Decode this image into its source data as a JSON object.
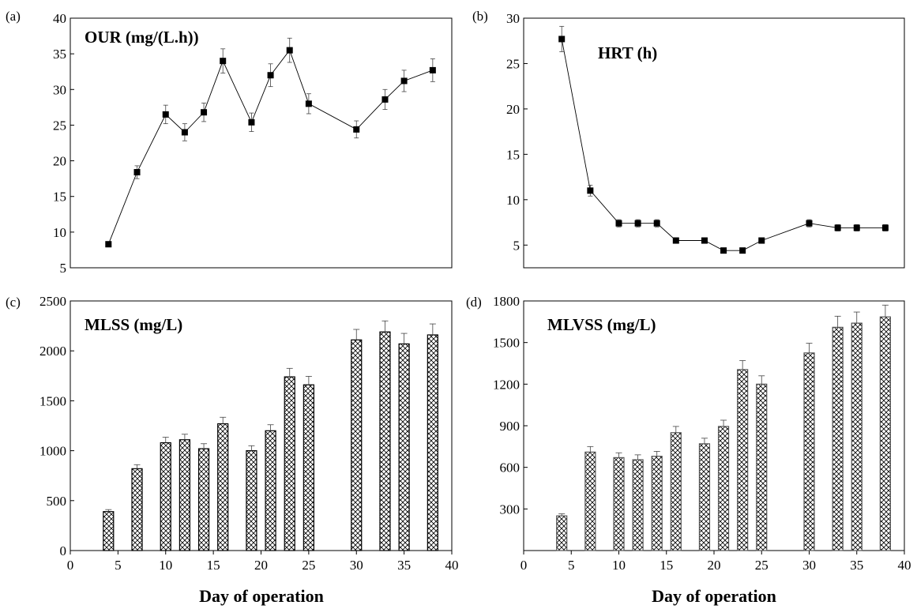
{
  "figure": {
    "xlabel_left": "Day of operation",
    "xlabel_right": "Day of operation"
  },
  "chart_data": [
    {
      "panel": "(a)",
      "type": "line",
      "title": "OUR (mg/(L.h))",
      "xlabel": "",
      "ylabel": "",
      "xlim": [
        0,
        40
      ],
      "ylim": [
        5,
        40
      ],
      "yticks": [
        5,
        10,
        15,
        20,
        25,
        30,
        35,
        40
      ],
      "xticks": [],
      "x": [
        4,
        7,
        10,
        12,
        14,
        16,
        19,
        21,
        23,
        25,
        30,
        33,
        35,
        38
      ],
      "values": [
        8.3,
        18.4,
        26.5,
        24.0,
        26.8,
        34.0,
        25.4,
        32.0,
        35.5,
        28.0,
        24.4,
        28.6,
        31.2,
        32.7
      ],
      "errors": [
        0.2,
        0.9,
        1.3,
        1.2,
        1.3,
        1.7,
        1.3,
        1.6,
        1.7,
        1.4,
        1.2,
        1.4,
        1.5,
        1.6
      ],
      "marker": "square"
    },
    {
      "panel": "(b)",
      "type": "line",
      "title": "HRT (h)",
      "xlabel": "",
      "ylabel": "",
      "xlim": [
        0,
        40
      ],
      "ylim": [
        2.5,
        30
      ],
      "yticks": [
        5,
        10,
        15,
        20,
        25,
        30
      ],
      "xticks": [],
      "x": [
        4,
        7,
        10,
        12,
        14,
        16,
        19,
        21,
        23,
        25,
        30,
        33,
        35,
        38
      ],
      "values": [
        27.7,
        11.0,
        7.4,
        7.4,
        7.4,
        5.5,
        5.5,
        4.4,
        4.4,
        5.5,
        7.4,
        6.9,
        6.9,
        6.9
      ],
      "errors": [
        1.4,
        0.6,
        0.4,
        0.4,
        0.4,
        0.3,
        0.3,
        0.2,
        0.2,
        0.3,
        0.4,
        0.35,
        0.35,
        0.35
      ],
      "marker": "square"
    },
    {
      "panel": "(c)",
      "type": "bar",
      "title": "MLSS (mg/L)",
      "xlabel": "Day of operation",
      "ylabel": "",
      "xlim": [
        0,
        40
      ],
      "ylim": [
        0,
        2500
      ],
      "yticks": [
        0,
        500,
        1000,
        1500,
        2000,
        2500
      ],
      "xticks": [
        0,
        5,
        10,
        15,
        20,
        25,
        30,
        35,
        40
      ],
      "x": [
        4,
        7,
        10,
        12,
        14,
        16,
        19,
        21,
        23,
        25,
        30,
        33,
        35,
        38
      ],
      "values": [
        390,
        820,
        1080,
        1110,
        1020,
        1270,
        1000,
        1200,
        1740,
        1660,
        2110,
        2190,
        2070,
        2160
      ],
      "errors": [
        20,
        40,
        55,
        55,
        50,
        65,
        50,
        60,
        85,
        85,
        105,
        110,
        105,
        110
      ],
      "pattern": "crosshatch"
    },
    {
      "panel": "(d)",
      "type": "bar",
      "title": "MLVSS (mg/L)",
      "xlabel": "Day of operation",
      "ylabel": "",
      "xlim": [
        0,
        40
      ],
      "ylim": [
        0,
        1800
      ],
      "yticks": [
        300,
        600,
        900,
        1200,
        1500,
        1800
      ],
      "xticks": [
        0,
        5,
        10,
        15,
        20,
        25,
        30,
        35,
        40
      ],
      "x": [
        4,
        7,
        10,
        12,
        14,
        16,
        19,
        21,
        23,
        25,
        30,
        33,
        35,
        38
      ],
      "values": [
        250,
        710,
        670,
        655,
        680,
        850,
        770,
        895,
        1305,
        1200,
        1425,
        1610,
        1640,
        1685
      ],
      "errors": [
        15,
        40,
        35,
        35,
        35,
        45,
        40,
        45,
        65,
        60,
        70,
        80,
        80,
        85
      ],
      "pattern": "crosshatch"
    }
  ]
}
